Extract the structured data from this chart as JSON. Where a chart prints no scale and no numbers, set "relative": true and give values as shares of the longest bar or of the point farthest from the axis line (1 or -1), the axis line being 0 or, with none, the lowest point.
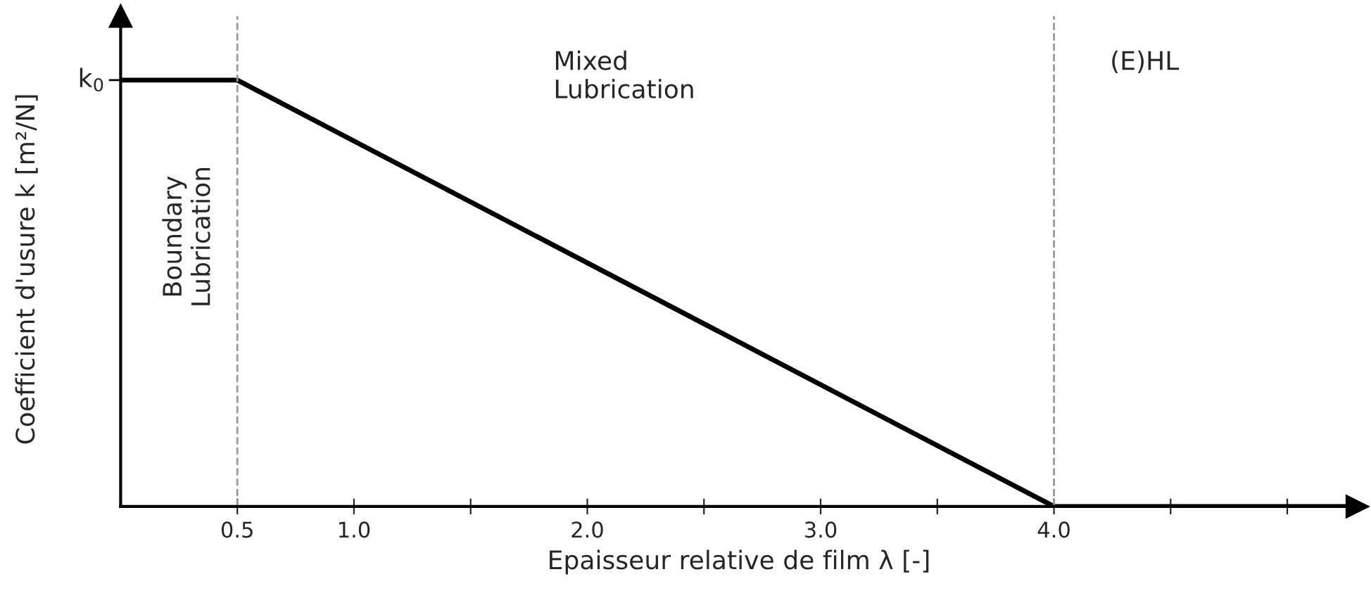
{
  "chart_data": {
    "type": "line",
    "relative": true,
    "xlabel": "Epaisseur relative de film λ [-]",
    "ylabel": "Coefficient d'usure k [m²/N]",
    "x": [
      0,
      0.5,
      4.0,
      5.25
    ],
    "series": [
      {
        "color": "#000000",
        "values": [
          1,
          1,
          0,
          0
        ]
      }
    ],
    "xlim": [
      0,
      5.3
    ],
    "xticks": [
      {
        "value": 0.5,
        "label": "0.5"
      },
      {
        "value": 1.0,
        "label": "1.0"
      },
      {
        "value": 1.5,
        "label": null
      },
      {
        "value": 2.0,
        "label": "2.0"
      },
      {
        "value": 2.5,
        "label": null
      },
      {
        "value": 3.0,
        "label": "3.0"
      },
      {
        "value": 3.5,
        "label": null
      },
      {
        "value": 4.0,
        "label": "4.0"
      },
      {
        "value": 4.5,
        "label": null
      },
      {
        "value": 5.0,
        "label": null
      }
    ],
    "ref_lines": [
      {
        "axis": "x",
        "value": 0.5,
        "color": "#999999",
        "line_style": "dashed"
      },
      {
        "axis": "x",
        "value": 4.0,
        "color": "#999999",
        "line_style": "dashed"
      }
    ],
    "annotations": [
      {
        "text": "k$_{0}$",
        "x": 0,
        "y": 1
      },
      "Boundary\nLubrication",
      "Mixed\nLubrication",
      "(E)HL"
    ],
    "grid": false,
    "legend": false,
    "line_style": "solid",
    "marker": "none"
  }
}
